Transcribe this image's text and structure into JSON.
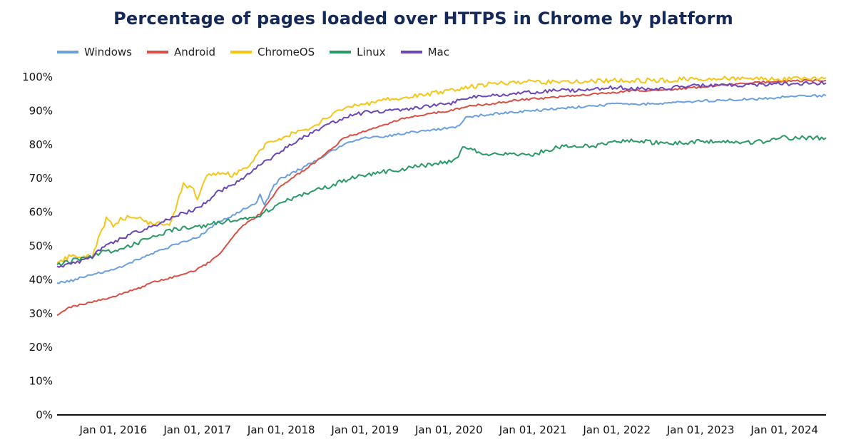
{
  "chart_data": {
    "type": "line",
    "title": "Percentage of pages loaded over HTTPS in Chrome by platform",
    "xlabel": "",
    "ylabel": "",
    "x_range": [
      "2015-05-01",
      "2024-06-30"
    ],
    "ylim": [
      0,
      100
    ],
    "y_ticks": [
      0,
      10,
      20,
      30,
      40,
      50,
      60,
      70,
      80,
      90,
      100
    ],
    "y_tick_labels": [
      "0%",
      "10%",
      "20%",
      "30%",
      "40%",
      "50%",
      "60%",
      "70%",
      "80%",
      "90%",
      "100%"
    ],
    "x_ticks": [
      "2016-01-01",
      "2017-01-01",
      "2018-01-01",
      "2019-01-01",
      "2020-01-01",
      "2021-01-01",
      "2022-01-01",
      "2023-01-01",
      "2024-01-01"
    ],
    "x_tick_labels": [
      "Jan 01, 2016",
      "Jan 01, 2017",
      "Jan 01, 2018",
      "Jan 01, 2019",
      "Jan 01, 2020",
      "Jan 01, 2021",
      "Jan 01, 2022",
      "Jan 01, 2023",
      "Jan 01, 2024"
    ],
    "grid": false,
    "legend_position": "top-left",
    "series": [
      {
        "name": "Windows",
        "color": "#6a9fe0",
        "points": [
          [
            "2015-05-01",
            39
          ],
          [
            "2015-07-01",
            39.7
          ],
          [
            "2015-10-01",
            41.5
          ],
          [
            "2016-01-01",
            43
          ],
          [
            "2016-04-01",
            45.5
          ],
          [
            "2016-07-01",
            48
          ],
          [
            "2016-10-01",
            50.5
          ],
          [
            "2017-01-01",
            52.5
          ],
          [
            "2017-04-01",
            57
          ],
          [
            "2017-07-01",
            60
          ],
          [
            "2017-09-15",
            63
          ],
          [
            "2017-10-01",
            65
          ],
          [
            "2017-10-20",
            62
          ],
          [
            "2017-12-01",
            68
          ],
          [
            "2018-01-01",
            70
          ],
          [
            "2018-04-01",
            73
          ],
          [
            "2018-07-01",
            76.5
          ],
          [
            "2018-10-01",
            80
          ],
          [
            "2019-01-01",
            82
          ],
          [
            "2019-04-01",
            82.5
          ],
          [
            "2019-07-01",
            83.5
          ],
          [
            "2019-10-01",
            84
          ],
          [
            "2020-01-01",
            85
          ],
          [
            "2020-02-15",
            85.5
          ],
          [
            "2020-03-15",
            88
          ],
          [
            "2020-05-01",
            88.5
          ],
          [
            "2020-07-01",
            89
          ],
          [
            "2020-10-01",
            89.5
          ],
          [
            "2021-01-01",
            90
          ],
          [
            "2021-04-01",
            90.5
          ],
          [
            "2021-07-01",
            91
          ],
          [
            "2021-10-01",
            91.5
          ],
          [
            "2022-01-01",
            92
          ],
          [
            "2022-04-01",
            92
          ],
          [
            "2022-07-01",
            92
          ],
          [
            "2022-10-01",
            92.5
          ],
          [
            "2023-01-01",
            93
          ],
          [
            "2023-04-01",
            93
          ],
          [
            "2023-07-01",
            93.5
          ],
          [
            "2023-10-01",
            93.5
          ],
          [
            "2024-01-01",
            94.2
          ],
          [
            "2024-06-30",
            94.5
          ]
        ]
      },
      {
        "name": "Android",
        "color": "#d94f45",
        "points": [
          [
            "2015-05-01",
            29.5
          ],
          [
            "2015-07-01",
            32
          ],
          [
            "2015-10-01",
            33.5
          ],
          [
            "2016-01-01",
            35
          ],
          [
            "2016-04-01",
            37
          ],
          [
            "2016-07-01",
            39.5
          ],
          [
            "2016-10-01",
            41
          ],
          [
            "2017-01-01",
            43
          ],
          [
            "2017-04-01",
            47
          ],
          [
            "2017-07-01",
            55
          ],
          [
            "2017-10-01",
            59.5
          ],
          [
            "2018-01-01",
            68
          ],
          [
            "2018-04-01",
            72
          ],
          [
            "2018-07-01",
            76.5
          ],
          [
            "2018-10-01",
            82
          ],
          [
            "2019-01-01",
            84
          ],
          [
            "2019-04-01",
            86
          ],
          [
            "2019-07-01",
            88
          ],
          [
            "2019-10-01",
            89
          ],
          [
            "2020-01-01",
            90
          ],
          [
            "2020-04-01",
            91.5
          ],
          [
            "2020-07-01",
            92
          ],
          [
            "2020-10-01",
            93
          ],
          [
            "2021-01-01",
            93.5
          ],
          [
            "2021-04-01",
            94
          ],
          [
            "2021-07-01",
            94.5
          ],
          [
            "2021-10-01",
            95
          ],
          [
            "2022-01-01",
            95.5
          ],
          [
            "2022-04-01",
            96
          ],
          [
            "2022-07-01",
            96
          ],
          [
            "2022-10-01",
            96.5
          ],
          [
            "2023-01-01",
            97
          ],
          [
            "2023-04-01",
            97.5
          ],
          [
            "2023-07-01",
            98
          ],
          [
            "2023-10-01",
            98.5
          ],
          [
            "2024-01-01",
            98.8
          ],
          [
            "2024-06-30",
            99
          ]
        ]
      },
      {
        "name": "ChromeOS",
        "color": "#f5c518",
        "points": [
          [
            "2015-05-01",
            45
          ],
          [
            "2015-07-01",
            47
          ],
          [
            "2015-10-01",
            47
          ],
          [
            "2015-12-01",
            58
          ],
          [
            "2016-01-01",
            56
          ],
          [
            "2016-02-01",
            58
          ],
          [
            "2016-04-01",
            59
          ],
          [
            "2016-06-01",
            57
          ],
          [
            "2016-09-01",
            56
          ],
          [
            "2016-11-01",
            68
          ],
          [
            "2016-12-15",
            67
          ],
          [
            "2017-01-01",
            64
          ],
          [
            "2017-02-01",
            70
          ],
          [
            "2017-04-01",
            72
          ],
          [
            "2017-06-01",
            71
          ],
          [
            "2017-07-01",
            72
          ],
          [
            "2017-09-01",
            75
          ],
          [
            "2017-11-01",
            81
          ],
          [
            "2018-01-01",
            82
          ],
          [
            "2018-04-01",
            84
          ],
          [
            "2018-07-01",
            87
          ],
          [
            "2018-10-01",
            91
          ],
          [
            "2019-01-01",
            92
          ],
          [
            "2019-04-01",
            93.5
          ],
          [
            "2019-07-01",
            94
          ],
          [
            "2019-10-01",
            95
          ],
          [
            "2020-01-01",
            96
          ],
          [
            "2020-04-01",
            97
          ],
          [
            "2020-07-01",
            98
          ],
          [
            "2020-10-01",
            98.5
          ],
          [
            "2021-01-01",
            98.5
          ],
          [
            "2021-07-01",
            98.5
          ],
          [
            "2022-01-01",
            99
          ],
          [
            "2022-07-01",
            99
          ],
          [
            "2023-01-01",
            99.5
          ],
          [
            "2023-07-01",
            99.5
          ],
          [
            "2024-01-01",
            99.5
          ],
          [
            "2024-06-30",
            99.7
          ]
        ]
      },
      {
        "name": "Linux",
        "color": "#2a9a65",
        "points": [
          [
            "2015-05-01",
            44.5
          ],
          [
            "2015-07-01",
            45.5
          ],
          [
            "2015-10-01",
            47
          ],
          [
            "2015-12-01",
            48.5
          ],
          [
            "2016-01-01",
            48.5
          ],
          [
            "2016-04-01",
            50.5
          ],
          [
            "2016-07-01",
            53
          ],
          [
            "2016-10-01",
            55
          ],
          [
            "2017-01-01",
            55.5
          ],
          [
            "2017-04-01",
            57
          ],
          [
            "2017-07-01",
            57.5
          ],
          [
            "2017-10-01",
            59
          ],
          [
            "2018-01-01",
            63
          ],
          [
            "2018-04-01",
            65
          ],
          [
            "2018-07-01",
            67
          ],
          [
            "2018-10-01",
            69.5
          ],
          [
            "2019-01-01",
            71
          ],
          [
            "2019-04-01",
            72
          ],
          [
            "2019-07-01",
            73
          ],
          [
            "2019-10-01",
            74
          ],
          [
            "2020-01-01",
            75
          ],
          [
            "2020-02-01",
            75.5
          ],
          [
            "2020-03-01",
            80
          ],
          [
            "2020-05-01",
            78
          ],
          [
            "2020-07-01",
            77
          ],
          [
            "2020-10-01",
            77
          ],
          [
            "2021-01-01",
            77
          ],
          [
            "2021-04-01",
            79
          ],
          [
            "2021-07-01",
            79.5
          ],
          [
            "2021-10-01",
            79.5
          ],
          [
            "2022-01-01",
            81
          ],
          [
            "2022-04-01",
            81
          ],
          [
            "2022-07-01",
            80.5
          ],
          [
            "2022-10-01",
            80.5
          ],
          [
            "2023-01-01",
            81
          ],
          [
            "2023-04-01",
            81
          ],
          [
            "2023-07-01",
            80.5
          ],
          [
            "2023-10-01",
            81
          ],
          [
            "2024-01-01",
            82
          ],
          [
            "2024-06-30",
            82
          ]
        ]
      },
      {
        "name": "Mac",
        "color": "#6a46b8",
        "points": [
          [
            "2015-05-01",
            44
          ],
          [
            "2015-07-01",
            44.5
          ],
          [
            "2015-10-01",
            47
          ],
          [
            "2015-12-01",
            50
          ],
          [
            "2016-01-01",
            51
          ],
          [
            "2016-04-01",
            54
          ],
          [
            "2016-07-01",
            56
          ],
          [
            "2016-10-01",
            59
          ],
          [
            "2017-01-01",
            61
          ],
          [
            "2017-04-01",
            66
          ],
          [
            "2017-07-01",
            69
          ],
          [
            "2017-10-01",
            74
          ],
          [
            "2018-01-01",
            78
          ],
          [
            "2018-04-01",
            82
          ],
          [
            "2018-07-01",
            85
          ],
          [
            "2018-10-01",
            88
          ],
          [
            "2019-01-01",
            89.5
          ],
          [
            "2019-04-01",
            90
          ],
          [
            "2019-07-01",
            90.5
          ],
          [
            "2019-10-01",
            91.5
          ],
          [
            "2020-01-01",
            92
          ],
          [
            "2020-04-01",
            94
          ],
          [
            "2020-07-01",
            94.5
          ],
          [
            "2020-10-01",
            95
          ],
          [
            "2021-01-01",
            95.5
          ],
          [
            "2021-04-01",
            96
          ],
          [
            "2021-07-01",
            96
          ],
          [
            "2021-10-01",
            96.5
          ],
          [
            "2022-01-01",
            97
          ],
          [
            "2022-04-01",
            96.5
          ],
          [
            "2022-07-01",
            96.5
          ],
          [
            "2022-10-01",
            97
          ],
          [
            "2023-01-01",
            97.5
          ],
          [
            "2023-04-01",
            97.5
          ],
          [
            "2023-07-01",
            97.5
          ],
          [
            "2023-10-01",
            97.8
          ],
          [
            "2024-01-01",
            98
          ],
          [
            "2024-06-30",
            98.2
          ]
        ]
      }
    ]
  }
}
